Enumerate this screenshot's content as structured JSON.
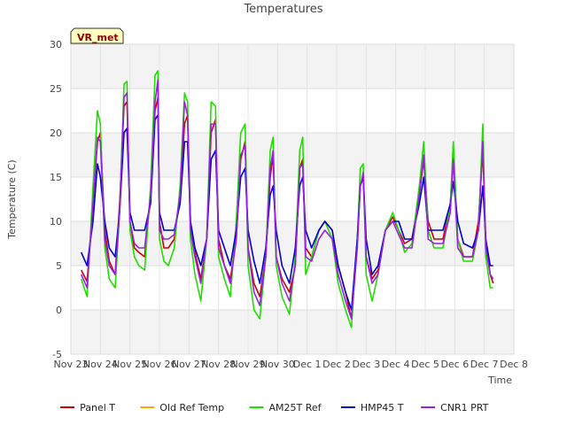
{
  "chart_data": {
    "type": "line",
    "title": "Temperatures",
    "xlabel": "Time",
    "ylabel": "Temperature (C)",
    "ylim": [
      -5,
      30
    ],
    "yticks": [
      -5,
      0,
      5,
      10,
      15,
      20,
      25,
      30
    ],
    "xlim": [
      0,
      15
    ],
    "xticks": [
      {
        "value": 0,
        "label": "Nov 23"
      },
      {
        "value": 1,
        "label": "Nov 24"
      },
      {
        "value": 2,
        "label": "Nov 25"
      },
      {
        "value": 3,
        "label": "Nov 26"
      },
      {
        "value": 4,
        "label": "Nov 27"
      },
      {
        "value": 5,
        "label": "Nov 28"
      },
      {
        "value": 6,
        "label": "Nov 29"
      },
      {
        "value": 7,
        "label": "Nov 30"
      },
      {
        "value": 8,
        "label": "Dec 1"
      },
      {
        "value": 9,
        "label": "Dec 2"
      },
      {
        "value": 10,
        "label": "Dec 3"
      },
      {
        "value": 11,
        "label": "Dec 4"
      },
      {
        "value": 12,
        "label": "Dec 5"
      },
      {
        "value": 13,
        "label": "Dec 6"
      },
      {
        "value": 14,
        "label": "Dec 7"
      },
      {
        "value": 15,
        "label": "Dec 8"
      }
    ],
    "site_label": "VR_met",
    "legend_position": "bottom",
    "series": [
      {
        "name": "Panel T",
        "color": "#cc0000",
        "x": [
          0.35,
          0.55,
          0.75,
          0.9,
          1.0,
          1.15,
          1.3,
          1.5,
          1.65,
          1.8,
          1.9,
          2.0,
          2.15,
          2.3,
          2.5,
          2.7,
          2.85,
          2.95,
          3.0,
          3.15,
          3.3,
          3.5,
          3.7,
          3.85,
          3.95,
          4.05,
          4.2,
          4.4,
          4.6,
          4.75,
          4.9,
          5.0,
          5.2,
          5.4,
          5.6,
          5.75,
          5.9,
          6.0,
          6.2,
          6.4,
          6.6,
          6.75,
          6.85,
          6.95,
          7.15,
          7.4,
          7.6,
          7.75,
          7.85,
          7.95,
          8.15,
          8.4,
          8.6,
          8.85,
          9.05,
          9.3,
          9.5,
          9.7,
          9.8,
          9.9,
          10.0,
          10.2,
          10.4,
          10.65,
          10.9,
          11.1,
          11.3,
          11.55,
          11.8,
          11.95,
          12.1,
          12.3,
          12.6,
          12.85,
          12.95,
          13.1,
          13.3,
          13.6,
          13.8,
          13.95,
          14.05,
          14.2,
          14.3
        ],
        "y": [
          4.5,
          3.2,
          12,
          19,
          20,
          9,
          5.5,
          4,
          12,
          23,
          23.5,
          10,
          7,
          6.5,
          6,
          13,
          22.5,
          24,
          10,
          7,
          7,
          8,
          13,
          21,
          22,
          10,
          6.5,
          3.5,
          8,
          20,
          21.5,
          8,
          5,
          3.5,
          8,
          17,
          19,
          7,
          3,
          1.5,
          6,
          15,
          17.5,
          6,
          3.5,
          2,
          5,
          16,
          17,
          7,
          6,
          9,
          10,
          9,
          5,
          2,
          -1,
          8,
          14,
          15,
          6,
          3.5,
          4.5,
          9,
          10.5,
          9,
          7.5,
          8,
          13,
          17,
          10,
          8,
          8,
          12,
          17.5,
          8,
          6,
          6,
          10,
          18,
          8,
          4,
          3
        ]
      },
      {
        "name": "Old Ref Temp",
        "color": "#ffa500",
        "x": [],
        "y": []
      },
      {
        "name": "AM25T Ref",
        "color": "#22dd00",
        "x": [
          0.35,
          0.55,
          0.75,
          0.9,
          1.0,
          1.15,
          1.3,
          1.5,
          1.65,
          1.8,
          1.9,
          2.0,
          2.15,
          2.3,
          2.5,
          2.7,
          2.85,
          2.95,
          3.0,
          3.15,
          3.3,
          3.5,
          3.7,
          3.85,
          3.95,
          4.05,
          4.2,
          4.4,
          4.6,
          4.75,
          4.9,
          5.0,
          5.2,
          5.4,
          5.6,
          5.75,
          5.9,
          6.0,
          6.2,
          6.4,
          6.6,
          6.75,
          6.85,
          6.95,
          7.15,
          7.4,
          7.6,
          7.75,
          7.85,
          7.95,
          8.15,
          8.4,
          8.6,
          8.85,
          9.05,
          9.3,
          9.5,
          9.7,
          9.8,
          9.9,
          10.0,
          10.2,
          10.4,
          10.65,
          10.9,
          11.1,
          11.3,
          11.55,
          11.8,
          11.95,
          12.1,
          12.3,
          12.6,
          12.85,
          12.95,
          13.1,
          13.3,
          13.6,
          13.8,
          13.95,
          14.05,
          14.2,
          14.3
        ],
        "y": [
          3.5,
          1.5,
          14,
          22.5,
          21,
          7,
          3.5,
          2.5,
          11,
          25.5,
          25.8,
          9,
          6,
          5,
          4.5,
          14,
          26.5,
          27,
          8,
          5.5,
          5,
          7,
          14,
          24.5,
          23.5,
          8,
          4,
          1,
          8,
          23.5,
          23,
          6,
          3.5,
          1.5,
          10,
          20,
          21,
          5,
          0,
          -1,
          6,
          18,
          19.5,
          5,
          1.5,
          -0.5,
          6,
          18,
          19.5,
          4,
          6,
          9,
          10,
          8,
          3,
          0,
          -2,
          8,
          16,
          16.5,
          4,
          1,
          4,
          9,
          11,
          9,
          6.5,
          7.5,
          14,
          19,
          9,
          7,
          7,
          12,
          19,
          8,
          5.5,
          5.5,
          9,
          21,
          6,
          2.5,
          2.5
        ]
      },
      {
        "name": "HMP45 T",
        "color": "#0000cc",
        "x": [
          0.35,
          0.55,
          0.75,
          0.9,
          1.0,
          1.15,
          1.3,
          1.5,
          1.65,
          1.8,
          1.9,
          2.0,
          2.15,
          2.3,
          2.5,
          2.7,
          2.85,
          2.95,
          3.0,
          3.15,
          3.3,
          3.5,
          3.7,
          3.85,
          3.95,
          4.05,
          4.2,
          4.4,
          4.6,
          4.75,
          4.9,
          5.0,
          5.2,
          5.4,
          5.6,
          5.75,
          5.9,
          6.0,
          6.2,
          6.4,
          6.6,
          6.75,
          6.85,
          6.95,
          7.15,
          7.4,
          7.6,
          7.75,
          7.85,
          7.95,
          8.15,
          8.4,
          8.6,
          8.85,
          9.05,
          9.3,
          9.5,
          9.7,
          9.8,
          9.9,
          10.0,
          10.2,
          10.4,
          10.65,
          10.9,
          11.1,
          11.3,
          11.55,
          11.8,
          11.95,
          12.1,
          12.3,
          12.6,
          12.85,
          12.95,
          13.1,
          13.3,
          13.6,
          13.8,
          13.95,
          14.05,
          14.2,
          14.3
        ],
        "y": [
          6.5,
          5,
          10,
          16.5,
          15,
          10,
          7,
          6,
          11,
          20,
          20.5,
          11,
          9,
          9,
          9,
          12,
          21.5,
          22,
          11,
          9,
          9,
          9,
          12,
          19,
          19,
          10,
          7,
          5,
          8,
          17,
          18,
          9,
          7,
          5,
          9,
          15,
          16,
          9,
          5.5,
          3,
          7,
          13,
          14,
          9,
          5,
          3,
          7,
          14,
          15,
          9,
          7,
          9,
          10,
          9,
          5,
          2,
          0,
          8,
          14,
          15,
          8,
          4,
          5,
          9,
          10,
          10,
          8,
          8,
          12,
          15,
          9,
          9,
          9,
          12,
          14.5,
          10,
          7.5,
          7,
          9,
          14,
          8,
          5,
          5
        ]
      },
      {
        "name": "CNR1 PRT",
        "color": "#9922dd",
        "x": [
          0.35,
          0.55,
          0.75,
          0.9,
          1.0,
          1.15,
          1.3,
          1.5,
          1.65,
          1.8,
          1.9,
          2.0,
          2.15,
          2.3,
          2.5,
          2.7,
          2.85,
          2.95,
          3.0,
          3.15,
          3.3,
          3.5,
          3.7,
          3.85,
          3.95,
          4.05,
          4.2,
          4.4,
          4.6,
          4.75,
          4.9,
          5.0,
          5.2,
          5.4,
          5.6,
          5.75,
          5.9,
          6.0,
          6.2,
          6.4,
          6.6,
          6.75,
          6.85,
          6.95,
          7.15,
          7.4,
          7.6,
          7.75,
          7.85,
          7.95,
          8.15,
          8.4,
          8.6,
          8.85,
          9.05,
          9.3,
          9.5,
          9.7,
          9.8,
          9.9,
          10.0,
          10.2,
          10.4,
          10.65,
          10.9,
          11.1,
          11.3,
          11.55,
          11.8,
          11.95,
          12.1,
          12.3,
          12.6,
          12.85,
          12.95,
          13.1,
          13.3,
          13.6,
          13.8,
          13.95,
          14.05,
          14.2,
          14.3
        ],
        "y": [
          4,
          2.5,
          12,
          19.5,
          19,
          8,
          5,
          4,
          11,
          24,
          24.5,
          10,
          7.5,
          7,
          7,
          13,
          23.5,
          26,
          9,
          8,
          8,
          8.5,
          13,
          23.5,
          22,
          9,
          6,
          3,
          8,
          21,
          21,
          7,
          5,
          3,
          8,
          17.5,
          18.5,
          7,
          2,
          0.5,
          6,
          16,
          18,
          6,
          3,
          1,
          5,
          16,
          16.5,
          6,
          5.5,
          8,
          9,
          8,
          4,
          1,
          -1,
          7,
          14,
          15.5,
          6,
          3,
          4,
          9,
          10,
          8.5,
          7,
          7,
          13,
          17.5,
          8,
          7.5,
          7.5,
          11,
          17,
          7,
          6,
          6,
          9,
          19,
          7,
          4,
          3.5
        ]
      }
    ]
  }
}
